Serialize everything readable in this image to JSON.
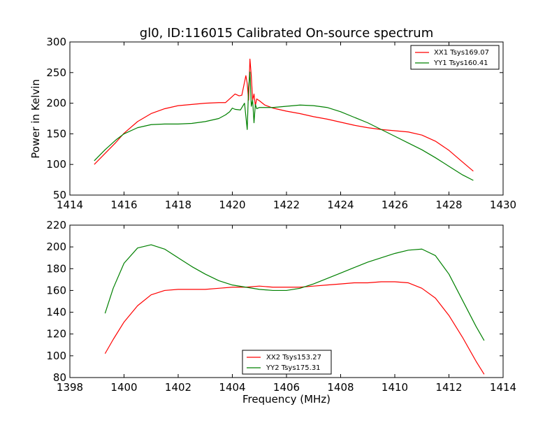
{
  "chart_data": [
    {
      "type": "line",
      "title": "gl0, ID:116015 Calibrated On-source spectrum",
      "xlabel": "",
      "ylabel": "Power in Kelvin",
      "xlim": [
        1414,
        1430
      ],
      "ylim": [
        50,
        300
      ],
      "xticks": [
        1414,
        1416,
        1418,
        1420,
        1422,
        1424,
        1426,
        1428,
        1430
      ],
      "yticks": [
        50,
        100,
        150,
        200,
        250,
        300
      ],
      "legend": "top-right",
      "grid": false,
      "series": [
        {
          "name": "XX1 Tsys169.07",
          "color": "#ff0000",
          "x": [
            1414.9,
            1415.3,
            1415.7,
            1416.0,
            1416.5,
            1417.0,
            1417.5,
            1418.0,
            1418.5,
            1419.0,
            1419.5,
            1419.75,
            1419.9,
            1420.1,
            1420.25,
            1420.35,
            1420.5,
            1420.55,
            1420.6,
            1420.65,
            1420.7,
            1420.75,
            1420.8,
            1420.85,
            1420.9,
            1421.0,
            1421.2,
            1421.5,
            1422.0,
            1422.5,
            1423.0,
            1423.5,
            1424.0,
            1424.5,
            1425.0,
            1425.5,
            1426.0,
            1426.5,
            1427.0,
            1427.5,
            1428.0,
            1428.5,
            1428.9
          ],
          "y": [
            100,
            118,
            136,
            151,
            170,
            183,
            191,
            196,
            198,
            200,
            201,
            201,
            207,
            215,
            212,
            213,
            245,
            232,
            205,
            272,
            245,
            205,
            215,
            196,
            207,
            204,
            197,
            192,
            187,
            183,
            178,
            174,
            169,
            164,
            160,
            157,
            155,
            153,
            148,
            138,
            123,
            104,
            89
          ]
        },
        {
          "name": "YY1 Tsys160.41",
          "color": "#008000",
          "x": [
            1414.9,
            1415.3,
            1415.7,
            1416.0,
            1416.5,
            1417.0,
            1417.5,
            1418.0,
            1418.5,
            1419.0,
            1419.5,
            1419.75,
            1419.9,
            1420.0,
            1420.1,
            1420.3,
            1420.45,
            1420.55,
            1420.6,
            1420.65,
            1420.7,
            1420.75,
            1420.8,
            1420.85,
            1420.9,
            1421.0,
            1421.5,
            1422.0,
            1422.5,
            1423.0,
            1423.5,
            1424.0,
            1424.5,
            1425.0,
            1425.5,
            1426.0,
            1426.5,
            1427.0,
            1427.5,
            1428.0,
            1428.5,
            1428.9
          ],
          "y": [
            106,
            124,
            140,
            150,
            160,
            165,
            166,
            166,
            167,
            170,
            175,
            181,
            186,
            192,
            190,
            189,
            200,
            157,
            225,
            251,
            195,
            205,
            168,
            198,
            191,
            193,
            193,
            195,
            197,
            196,
            193,
            186,
            177,
            168,
            157,
            146,
            135,
            124,
            111,
            97,
            83,
            74
          ]
        }
      ]
    },
    {
      "type": "line",
      "title": "",
      "xlabel": "Frequency (MHz)",
      "ylabel": "",
      "xlim": [
        1398,
        1414
      ],
      "ylim": [
        80,
        220
      ],
      "xticks": [
        1398,
        1400,
        1402,
        1404,
        1406,
        1408,
        1410,
        1412,
        1414
      ],
      "yticks": [
        80,
        100,
        120,
        140,
        160,
        180,
        200,
        220
      ],
      "legend": "lower-center",
      "grid": false,
      "series": [
        {
          "name": "XX2 Tsys153.27",
          "color": "#ff0000",
          "x": [
            1399.3,
            1399.6,
            1400.0,
            1400.5,
            1401.0,
            1401.5,
            1402.0,
            1402.5,
            1403.0,
            1403.5,
            1404.0,
            1404.5,
            1405.0,
            1405.5,
            1406.0,
            1406.5,
            1407.0,
            1407.5,
            1408.0,
            1408.5,
            1409.0,
            1409.5,
            1410.0,
            1410.5,
            1411.0,
            1411.5,
            1412.0,
            1412.5,
            1413.0,
            1413.3
          ],
          "y": [
            102,
            115,
            131,
            146,
            156,
            160,
            161,
            161,
            161,
            162,
            163,
            163,
            164,
            163,
            163,
            163,
            164,
            165,
            166,
            167,
            167,
            168,
            168,
            167,
            162,
            153,
            137,
            117,
            95,
            83
          ]
        },
        {
          "name": "YY2 Tsys175.31",
          "color": "#008000",
          "x": [
            1399.3,
            1399.6,
            1400.0,
            1400.5,
            1401.0,
            1401.5,
            1402.0,
            1402.5,
            1403.0,
            1403.5,
            1404.0,
            1404.5,
            1405.0,
            1405.5,
            1406.0,
            1406.5,
            1407.0,
            1407.5,
            1408.0,
            1408.5,
            1409.0,
            1409.5,
            1410.0,
            1410.5,
            1411.0,
            1411.5,
            1412.0,
            1412.5,
            1413.0,
            1413.3
          ],
          "y": [
            139,
            162,
            185,
            199,
            202,
            198,
            190,
            182,
            175,
            169,
            165,
            163,
            161,
            160,
            160,
            162,
            166,
            171,
            176,
            181,
            186,
            190,
            194,
            197,
            198,
            192,
            175,
            151,
            127,
            114
          ]
        }
      ]
    }
  ]
}
